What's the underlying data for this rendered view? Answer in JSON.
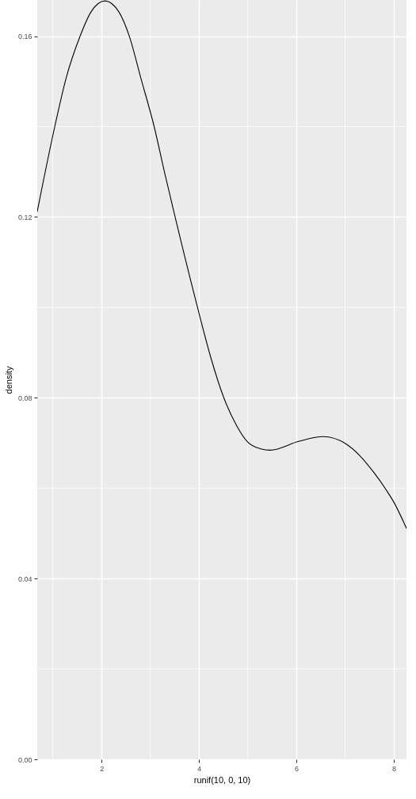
{
  "chart_data": {
    "type": "line",
    "xlabel": "runif(10, 0, 10)",
    "ylabel": "density",
    "x": [
      0.68,
      1.04,
      1.27,
      1.56,
      1.78,
      2.07,
      2.36,
      2.57,
      2.81,
      3.08,
      3.29,
      3.51,
      3.97,
      4.24,
      4.51,
      4.78,
      5.0,
      5.27,
      5.46,
      6.06,
      6.55,
      7.0,
      7.31,
      7.58,
      7.85,
      8.0,
      8.26
    ],
    "values": [
      0.1212,
      0.14,
      0.1506,
      0.16,
      0.1653,
      0.1678,
      0.1653,
      0.16,
      0.1506,
      0.14,
      0.13,
      0.12,
      0.1,
      0.089,
      0.08,
      0.0737,
      0.0702,
      0.0687,
      0.0684,
      0.0704,
      0.0714,
      0.0699,
      0.0671,
      0.0636,
      0.0595,
      0.0569,
      0.0511
    ],
    "color": "#000000",
    "line_style": "solid",
    "marker": "none",
    "xlim": [
      0.68,
      8.26
    ],
    "ylim": [
      0,
      0.168
    ],
    "xticks": [
      2,
      4,
      6,
      8
    ],
    "yticks": [
      {
        "value": 0,
        "label": "0.00"
      },
      0.04,
      0.08,
      0.12,
      0.16
    ],
    "grid": true
  }
}
